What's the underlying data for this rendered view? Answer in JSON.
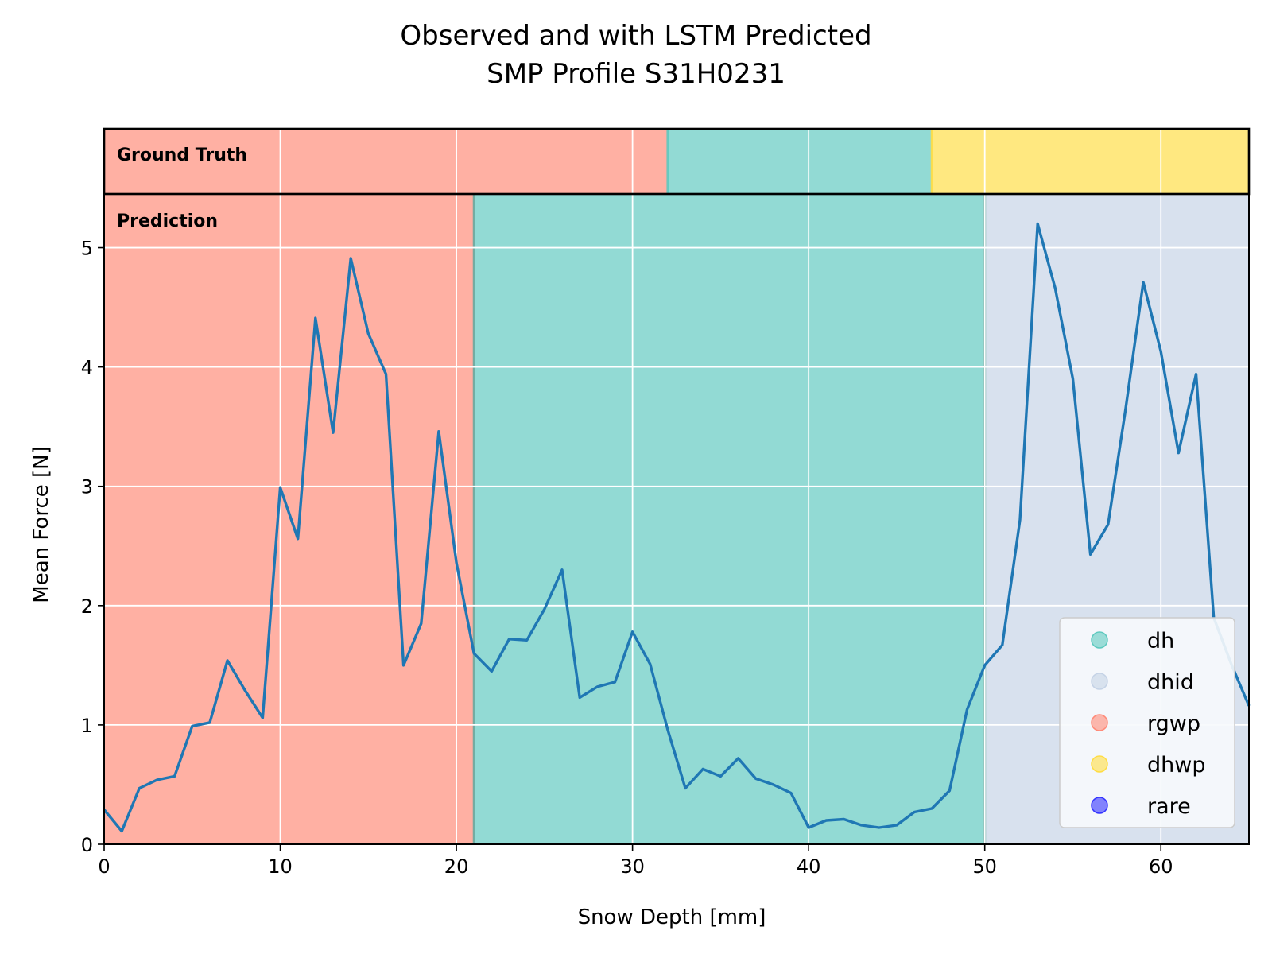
{
  "chart_data": {
    "type": "line",
    "title": "Observed and with LSTM Predicted",
    "subtitle": "SMP Profile S31H0231",
    "xlabel": "Snow Depth [mm]",
    "ylabel": "Mean Force [N]",
    "xlim": [
      0,
      65
    ],
    "ylim": [
      0,
      5.45
    ],
    "xticks": [
      0,
      10,
      20,
      30,
      40,
      50,
      60
    ],
    "yticks": [
      0,
      1,
      2,
      3,
      4,
      5
    ],
    "grid": true,
    "legend_position": "bottom-right",
    "ground_truth_label": "Ground Truth",
    "prediction_label": "Prediction",
    "classes": [
      {
        "name": "dh",
        "color": "#5ec9bf"
      },
      {
        "name": "dhid",
        "color": "#c5d3e6"
      },
      {
        "name": "rgwp",
        "color": "#ff8a78"
      },
      {
        "name": "dhwp",
        "color": "#ffdd44"
      },
      {
        "name": "rare",
        "color": "#3333ff"
      }
    ],
    "ground_truth_segments": [
      {
        "class": "rgwp",
        "start": 0,
        "end": 32
      },
      {
        "class": "dh",
        "start": 32,
        "end": 47
      },
      {
        "class": "dhwp",
        "start": 47,
        "end": 65
      }
    ],
    "prediction_segments": [
      {
        "class": "rgwp",
        "start": 0,
        "end": 21
      },
      {
        "class": "dh",
        "start": 21,
        "end": 50
      },
      {
        "class": "dhid",
        "start": 50,
        "end": 65
      }
    ],
    "series": [
      {
        "color": "#1f77b4",
        "x": [
          0,
          1,
          2,
          3,
          4,
          5,
          6,
          7,
          8,
          9,
          10,
          11,
          12,
          13,
          14,
          15,
          16,
          17,
          18,
          19,
          20,
          21,
          22,
          23,
          24,
          25,
          26,
          27,
          28,
          29,
          30,
          31,
          32,
          33,
          34,
          35,
          36,
          37,
          38,
          39,
          40,
          41,
          42,
          43,
          44,
          45,
          46,
          47,
          48,
          49,
          50,
          51,
          52,
          53,
          54,
          55,
          56,
          57,
          58,
          59,
          60,
          61,
          62,
          63,
          64,
          65
        ],
        "y": [
          0.29,
          0.11,
          0.47,
          0.54,
          0.57,
          0.99,
          1.02,
          1.54,
          1.29,
          1.06,
          2.99,
          2.56,
          4.41,
          3.45,
          4.91,
          4.28,
          3.94,
          1.5,
          1.85,
          3.46,
          2.36,
          1.6,
          1.45,
          1.72,
          1.71,
          1.97,
          2.3,
          1.23,
          1.32,
          1.36,
          1.78,
          1.51,
          0.96,
          0.47,
          0.63,
          0.57,
          0.72,
          0.55,
          0.5,
          0.43,
          0.14,
          0.2,
          0.21,
          0.16,
          0.14,
          0.16,
          0.27,
          0.3,
          0.45,
          1.13,
          1.5,
          1.67,
          2.72,
          5.2,
          4.66,
          3.9,
          2.43,
          2.68,
          3.65,
          4.71,
          4.13,
          3.28,
          3.94,
          1.9,
          1.51,
          1.16
        ]
      }
    ]
  }
}
